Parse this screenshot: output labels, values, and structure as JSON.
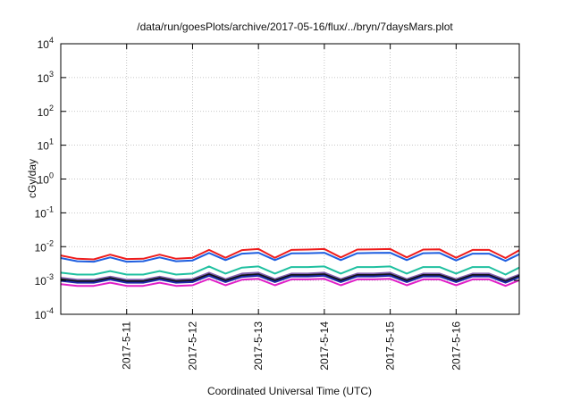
{
  "chart_data": {
    "type": "line",
    "title": "/data/run/goesPlots/archive/2017-05-16/flux/../bryn/7daysMars.plot",
    "xlabel": "Coordinated Universal Time (UTC)",
    "ylabel": "cGy/day",
    "y_scale": "log",
    "ylim": [
      "1e-4",
      "1e4"
    ],
    "xlim": [
      "2017-05-10 00:00",
      "2017-05-16 23:00"
    ],
    "grid": true,
    "legend": "none",
    "y_ticks": [
      {
        "base": "10",
        "exp": "-4"
      },
      {
        "base": "10",
        "exp": "-3"
      },
      {
        "base": "10",
        "exp": "-2"
      },
      {
        "base": "10",
        "exp": "-1"
      },
      {
        "base": "10",
        "exp": "0"
      },
      {
        "base": "10",
        "exp": "1"
      },
      {
        "base": "10",
        "exp": "2"
      },
      {
        "base": "10",
        "exp": "3"
      },
      {
        "base": "10",
        "exp": "4"
      }
    ],
    "x_ticks": [
      {
        "label": "2017-5-11",
        "date": "2017-05-11"
      },
      {
        "label": "2017-5-12",
        "date": "2017-05-12"
      },
      {
        "label": "2017-5-13",
        "date": "2017-05-13"
      },
      {
        "label": "2017-5-14",
        "date": "2017-05-14"
      },
      {
        "label": "2017-5-15",
        "date": "2017-05-15"
      },
      {
        "label": "2017-5-16",
        "date": "2017-05-16"
      }
    ],
    "x": [
      "2017-05-10 00:00",
      "2017-05-10 06:00",
      "2017-05-10 12:00",
      "2017-05-10 18:00",
      "2017-05-11 00:00",
      "2017-05-11 06:00",
      "2017-05-11 12:00",
      "2017-05-11 18:00",
      "2017-05-12 00:00",
      "2017-05-12 06:00",
      "2017-05-12 12:00",
      "2017-05-12 18:00",
      "2017-05-13 00:00",
      "2017-05-13 06:00",
      "2017-05-13 12:00",
      "2017-05-13 18:00",
      "2017-05-14 00:00",
      "2017-05-14 06:00",
      "2017-05-14 12:00",
      "2017-05-14 18:00",
      "2017-05-15 00:00",
      "2017-05-15 06:00",
      "2017-05-15 12:00",
      "2017-05-15 18:00",
      "2017-05-16 00:00",
      "2017-05-16 06:00",
      "2017-05-16 12:00",
      "2017-05-16 18:00",
      "2017-05-16 23:00"
    ],
    "series": [
      {
        "color": "#ee1c1c",
        "values": [
          0.0055,
          0.0044,
          0.0042,
          0.0058,
          0.0043,
          0.0044,
          0.0058,
          0.0044,
          0.0047,
          0.008,
          0.0047,
          0.0079,
          0.0085,
          0.0047,
          0.008,
          0.0082,
          0.0085,
          0.0048,
          0.0082,
          0.0083,
          0.0085,
          0.0048,
          0.0082,
          0.0083,
          0.0047,
          0.008,
          0.008,
          0.0046,
          0.0078
        ]
      },
      {
        "color": "#1f5fe0",
        "values": [
          0.0046,
          0.0037,
          0.0036,
          0.0048,
          0.0036,
          0.0037,
          0.0048,
          0.0037,
          0.0039,
          0.0065,
          0.004,
          0.0062,
          0.0066,
          0.004,
          0.0063,
          0.0064,
          0.0066,
          0.004,
          0.0064,
          0.0065,
          0.0066,
          0.004,
          0.0064,
          0.0065,
          0.0039,
          0.0062,
          0.0062,
          0.0038,
          0.006
        ]
      },
      {
        "color": "#20c0a0",
        "values": [
          0.0017,
          0.0015,
          0.0015,
          0.0019,
          0.0015,
          0.0015,
          0.0019,
          0.0015,
          0.0016,
          0.0026,
          0.0016,
          0.0024,
          0.0026,
          0.0016,
          0.0025,
          0.0025,
          0.0026,
          0.0016,
          0.0025,
          0.0025,
          0.0026,
          0.0016,
          0.0025,
          0.0025,
          0.0016,
          0.0025,
          0.0025,
          0.0015,
          0.0024
        ]
      },
      {
        "color": "#8060b0",
        "values": [
          0.0012,
          0.00105,
          0.00105,
          0.0013,
          0.00105,
          0.00105,
          0.0013,
          0.00105,
          0.0011,
          0.0017,
          0.0011,
          0.0016,
          0.0017,
          0.0011,
          0.0016,
          0.0016,
          0.0017,
          0.0011,
          0.0016,
          0.0016,
          0.0017,
          0.0011,
          0.0016,
          0.0016,
          0.0011,
          0.0016,
          0.0016,
          0.00105,
          0.0015
        ]
      },
      {
        "color": "#111111",
        "values": [
          0.00108,
          0.00095,
          0.00095,
          0.00118,
          0.00095,
          0.00095,
          0.00118,
          0.00095,
          0.001,
          0.00152,
          0.001,
          0.00142,
          0.00152,
          0.001,
          0.00145,
          0.00145,
          0.00152,
          0.001,
          0.00145,
          0.00145,
          0.00152,
          0.001,
          0.00145,
          0.00145,
          0.001,
          0.00145,
          0.00145,
          0.00095,
          0.00138
        ]
      },
      {
        "color": "#1e2aa8",
        "values": [
          0.00098,
          0.00086,
          0.00086,
          0.00107,
          0.00086,
          0.00086,
          0.00107,
          0.00086,
          0.0009,
          0.00138,
          0.0009,
          0.00128,
          0.00138,
          0.0009,
          0.00132,
          0.00132,
          0.00138,
          0.0009,
          0.00132,
          0.00132,
          0.00138,
          0.0009,
          0.00132,
          0.00132,
          0.0009,
          0.00132,
          0.00132,
          0.00086,
          0.00125
        ]
      },
      {
        "color": "#e020c8",
        "values": [
          0.00078,
          0.00069,
          0.00069,
          0.00086,
          0.00069,
          0.00069,
          0.00086,
          0.00069,
          0.00072,
          0.00112,
          0.00072,
          0.00105,
          0.00112,
          0.00072,
          0.00108,
          0.00108,
          0.00112,
          0.00072,
          0.00108,
          0.00108,
          0.00112,
          0.00072,
          0.00108,
          0.00108,
          0.00072,
          0.00108,
          0.00108,
          0.00069,
          0.00102
        ]
      }
    ]
  }
}
